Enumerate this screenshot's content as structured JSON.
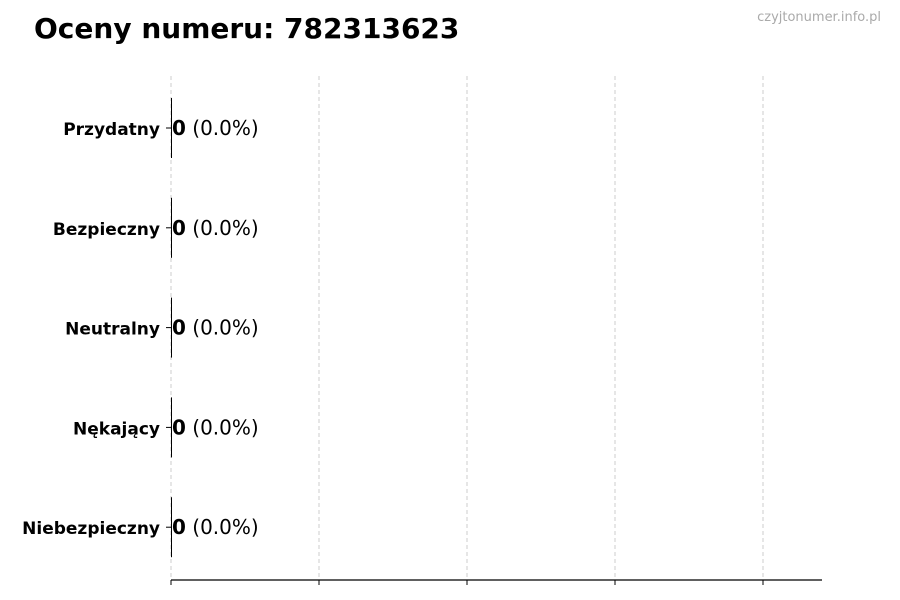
{
  "chart_data": {
    "type": "bar",
    "orientation": "horizontal",
    "title": "Oceny numeru: 782313623",
    "categories": [
      "Przydatny",
      "Bezpieczny",
      "Neutralny",
      "Nękający",
      "Niebezpieczny"
    ],
    "values": [
      0,
      0,
      0,
      0,
      0
    ],
    "data_labels": [
      {
        "count": "0",
        "percent": "(0.0%)"
      },
      {
        "count": "0",
        "percent": "(0.0%)"
      },
      {
        "count": "0",
        "percent": "(0.0%)"
      },
      {
        "count": "0",
        "percent": "(0.0%)"
      },
      {
        "count": "0",
        "percent": "(0.0%)"
      }
    ],
    "xlabel": "",
    "ylabel": "",
    "grid": "vertical dashed",
    "legend": "none",
    "xtick_count": 5,
    "colors": {
      "bar": "#000000",
      "grid": "#cccccc",
      "axis": "#000000"
    }
  },
  "watermark": "czyjtonumer.info.pl"
}
